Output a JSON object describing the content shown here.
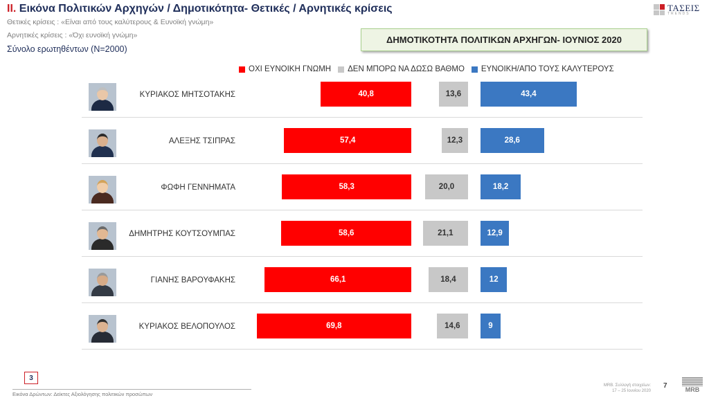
{
  "header": {
    "title_num": "II.",
    "title_text": "Εικόνα Πολιτικών Αρχηγών  / Δημοτικότητα- Θετικές / Αρνητικές κρίσεις",
    "subtitle_1": "Θετικές κρίσεις : «Είναι από τους καλύτερους &  Ευνοϊκή γνώμη»",
    "subtitle_2": "Αρνητικές κρίσεις : «Όχι ευνοϊκή γνώμη»",
    "sample": "Σύνολο ερωτηθέντων (N=2000)",
    "logo_text": "ΤΑΣΕΙΣ",
    "logo_sub": "TRENDS"
  },
  "banner": "ΔΗΜΟΤΙΚΟΤΗΤΑ ΠΟΛΙΤΙΚΩΝ ΑΡΧΗΓΩΝ- ΙΟΥΝΙΟΣ 2020",
  "colors": {
    "negative": "#ff0000",
    "neutral": "#c8c8c8",
    "positive": "#3b78c2",
    "accent": "#cc1f26",
    "title": "#1f2e5a"
  },
  "chart_data": {
    "type": "bar",
    "title": "ΔΗΜΟΤΙΚΟΤΗΤΑ ΠΟΛΙΤΙΚΩΝ ΑΡΧΗΓΩΝ- ΙΟΥΝΙΟΣ 2020",
    "orientation": "horizontal",
    "legend_position": "top",
    "grid": false,
    "categories": [
      "ΚΥΡΙΑΚΟΣ ΜΗΤΣΟΤΑΚΗΣ",
      "ΑΛΕΞΗΣ ΤΣΙΠΡΑΣ",
      "ΦΩΦΗ ΓΕΝΝΗΜΑΤΑ",
      "ΔΗΜΗΤΡΗΣ ΚΟΥΤΣΟΥΜΠΑΣ",
      "ΓΙΑΝΗΣ ΒΑΡΟΥΦΑΚΗΣ",
      "ΚΥΡΙΑΚΟΣ ΒΕΛΟΠΟΥΛΟΣ"
    ],
    "series": [
      {
        "name": "ΟΧΙ ΕΥΝΟΙΚΗ ΓΝΩΜΗ",
        "values": [
          40.8,
          57.4,
          58.3,
          58.6,
          66.1,
          69.8
        ],
        "labels": [
          "40,8",
          "57,4",
          "58,3",
          "58,6",
          "66,1",
          "69,8"
        ],
        "color": "#ff0000"
      },
      {
        "name": "ΔΕΝ ΜΠΟΡΩ ΝΑ ΔΩΣΩ ΒΑΘΜΟ",
        "values": [
          13.6,
          12.3,
          20.0,
          21.1,
          18.4,
          14.6
        ],
        "labels": [
          "13,6",
          "12,3",
          "20,0",
          "21,1",
          "18,4",
          "14,6"
        ],
        "color": "#c8c8c8"
      },
      {
        "name": "ΕΥΝΟΙΚΗ/ΑΠΟ ΤΟΥΣ ΚΑΛΥΤΕΡΟΥΣ",
        "values": [
          43.4,
          28.6,
          18.2,
          12.9,
          12,
          9
        ],
        "labels": [
          "43,4",
          "28,6",
          "18,2",
          "12,9",
          "12",
          "9"
        ],
        "color": "#3b78c2"
      }
    ]
  },
  "footer": {
    "slide_num": "3",
    "left_text": "Εικόνα Δρώντων: Δείκτες Αξιολόγησης πολιτικών προσώπων",
    "right_line1": "MRB. Συλλογή στοιχείων:",
    "right_line2": "17 – 25 Ιουνίου 2020",
    "page": "7",
    "mrb": "MRB"
  }
}
